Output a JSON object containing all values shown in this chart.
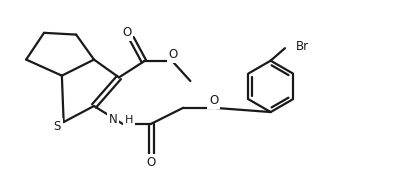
{
  "bg_color": "#ffffff",
  "line_color": "#1a1a1a",
  "line_width": 1.6,
  "font_size": 8.5,
  "xlim": [
    0,
    10.5
  ],
  "ylim": [
    0,
    5.2
  ],
  "figsize": [
    3.95,
    1.87
  ],
  "dpi": 100
}
